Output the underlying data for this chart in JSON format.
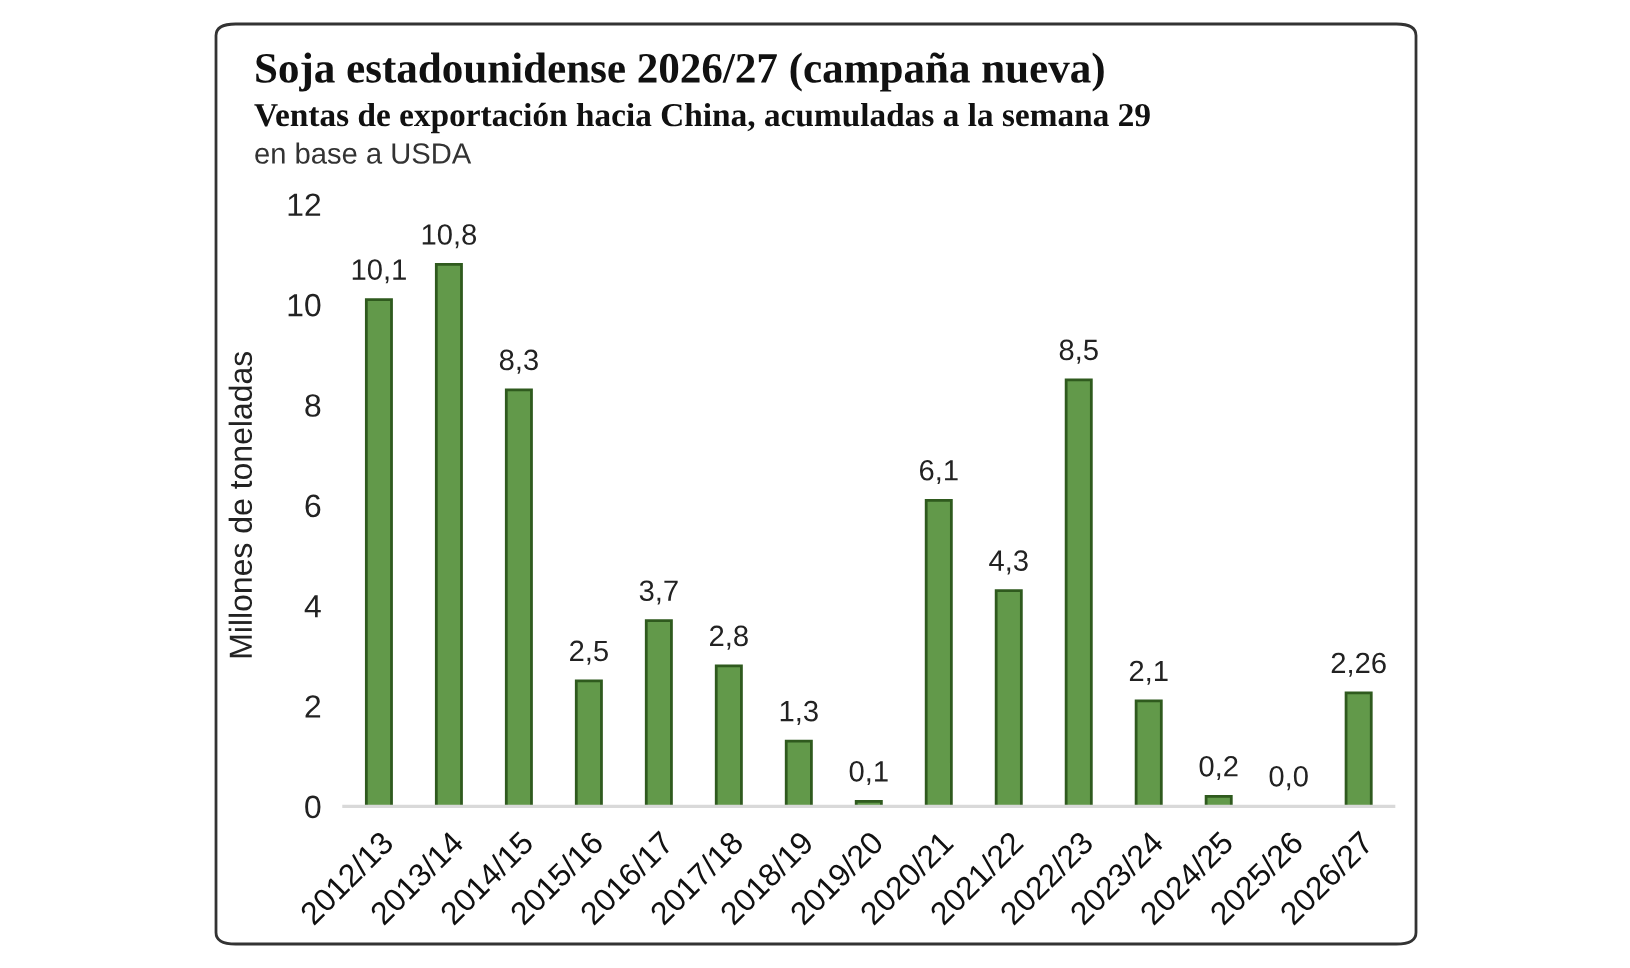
{
  "chart_data": {
    "type": "bar",
    "title": "Soja estadounidense 2026/27 (campaña nueva)",
    "subtitle": "Ventas de exportación hacia China, acumuladas a la semana 29",
    "ylabel": "Millones de toneladas",
    "annotations": [
      "en base a USDA"
    ],
    "categories": [
      "2012/13",
      "2013/14",
      "2014/15",
      "2015/16",
      "2016/17",
      "2017/18",
      "2018/19",
      "2019/20",
      "2020/21",
      "2021/22",
      "2022/23",
      "2023/24",
      "2024/25",
      "2025/26",
      "2026/27"
    ],
    "values": [
      10.1,
      10.8,
      8.3,
      2.5,
      3.7,
      2.8,
      1.3,
      0.1,
      6.1,
      4.3,
      8.5,
      2.1,
      0.2,
      0.0,
      2.26
    ],
    "value_labels": [
      "10,1",
      "10,8",
      "8,3",
      "2,5",
      "3,7",
      "2,8",
      "1,3",
      "0,1",
      "6,1",
      "4,3",
      "8,5",
      "2,1",
      "0,2",
      "0,0",
      "2,26"
    ],
    "color": "#62994a",
    "ylim": [
      0,
      12
    ],
    "yticks": [
      0,
      2,
      4,
      6,
      8,
      10,
      12
    ]
  }
}
